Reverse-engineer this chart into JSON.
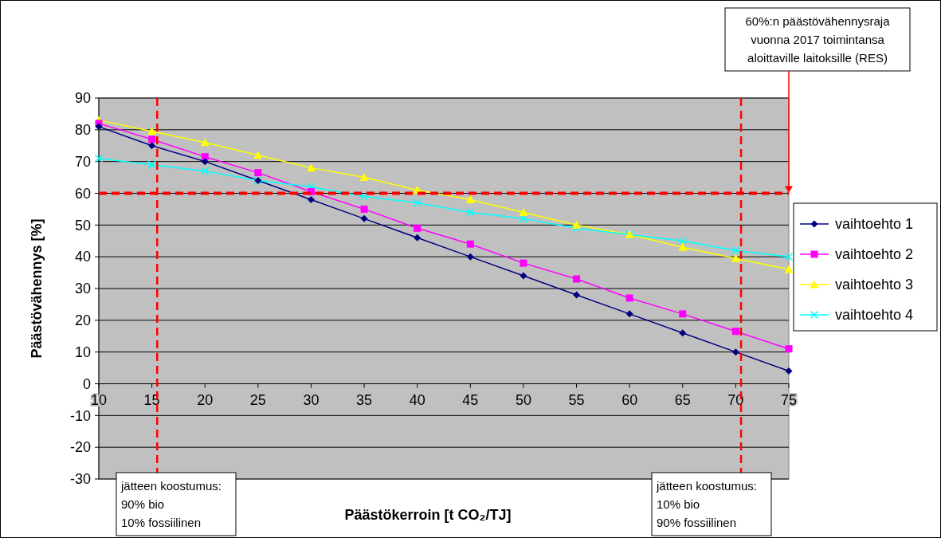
{
  "chart_data": {
    "type": "line",
    "xlabel": "Päästökerroin [t CO₂/TJ]",
    "ylabel": "Päästövähennys [%]",
    "x": [
      10,
      15,
      20,
      25,
      30,
      35,
      40,
      45,
      50,
      55,
      60,
      65,
      70,
      75
    ],
    "xlim": [
      10,
      75
    ],
    "xticks": [
      10,
      15,
      20,
      25,
      30,
      35,
      40,
      45,
      50,
      55,
      60,
      65,
      70,
      75
    ],
    "ylim": [
      -30,
      90
    ],
    "yticks": [
      -30,
      -20,
      -10,
      0,
      10,
      20,
      30,
      40,
      50,
      60,
      70,
      80,
      90
    ],
    "grid": "y",
    "legend": "right",
    "series": [
      {
        "name": "vaihtoehto 1",
        "color": "#000080",
        "marker": "diamond",
        "values": [
          81,
          75,
          70,
          64,
          58,
          52,
          46,
          40,
          34,
          28,
          22,
          16,
          10,
          4
        ]
      },
      {
        "name": "vaihtoehto 2",
        "color": "#ff00ff",
        "marker": "square",
        "values": [
          82,
          77,
          71.5,
          66.5,
          60.5,
          55,
          49,
          44,
          38,
          33,
          27,
          22,
          16.5,
          11
        ]
      },
      {
        "name": "vaihtoehto 3",
        "color": "#ffff00",
        "marker": "triangle",
        "values": [
          83,
          79.5,
          76,
          72,
          68,
          65,
          61,
          58,
          54,
          50,
          47,
          43,
          39.5,
          36
        ]
      },
      {
        "name": "vaihtoehto 4",
        "color": "#00ffff",
        "marker": "cross",
        "values": [
          71,
          69,
          67,
          64,
          62,
          59,
          57,
          54,
          52,
          49,
          47,
          45,
          42,
          40
        ]
      }
    ],
    "ref_lines": [
      {
        "axis": "y",
        "value": 60,
        "color": "#ff0000",
        "line_style": "dashed"
      },
      {
        "axis": "x",
        "value": 15.5,
        "color": "#ff0000",
        "line_style": "dashed"
      },
      {
        "axis": "x",
        "value": 70.5,
        "color": "#ff0000",
        "line_style": "dashed"
      }
    ],
    "annotations": [
      "60%:n päästövähennysraja\nvuonna 2017 toimintansa\naloittaville laitoksille (RES)",
      "jätteen koostumus:\n90% bio\n10% fossiilinen",
      "jätteen koostumus:\n10% bio\n90% fossiilinen"
    ]
  }
}
